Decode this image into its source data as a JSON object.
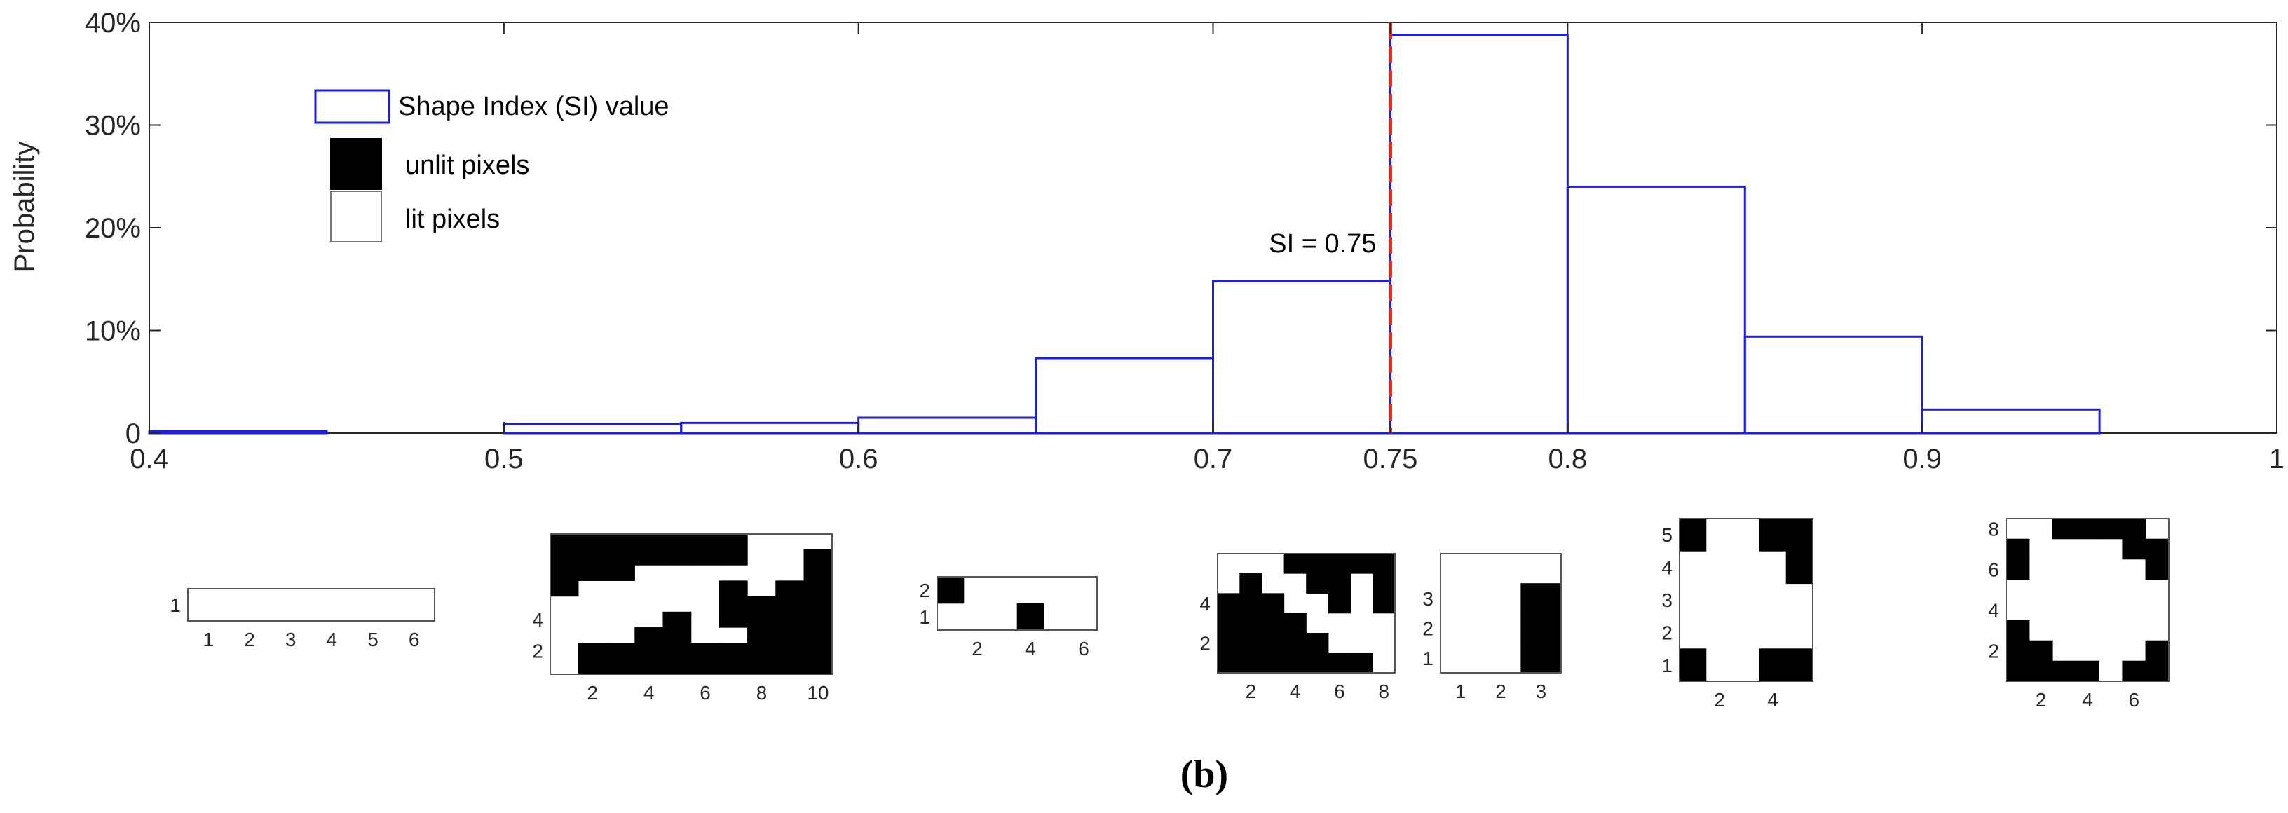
{
  "chart_data": {
    "type": "histogram",
    "ylabel": "Probability",
    "xlabel": "",
    "xlim": [
      0.4,
      1
    ],
    "ylim": [
      0,
      40
    ],
    "x_ticks": [
      "0.4",
      "0.5",
      "0.6",
      "0.7",
      "0.75",
      "0.8",
      "0.9",
      "1"
    ],
    "y_ticks": [
      "0",
      "10%",
      "20%",
      "30%",
      "40%"
    ],
    "bin_edges": [
      0.4,
      0.45,
      0.5,
      0.55,
      0.6,
      0.65,
      0.7,
      0.75,
      0.8,
      0.85,
      0.9,
      0.95,
      1.0
    ],
    "values": [
      0.2,
      0.0,
      0.9,
      1.0,
      1.5,
      7.3,
      14.8,
      38.8,
      24.0,
      9.4,
      2.3,
      0.0
    ],
    "series_name": "Shape Index (SI) value",
    "threshold": {
      "value": 0.75,
      "label": "SI = 0.75",
      "color": "#e8261c"
    },
    "legend": {
      "series": "Shape Index (SI) value",
      "unlit": "unlit pixels",
      "lit": "lit pixels"
    },
    "colors": {
      "bars": "#1f1fd9",
      "unlit": "#000000",
      "lit": "#ffffff"
    }
  },
  "examples": [
    {
      "rows": [
        "000000"
      ],
      "y_ticks": [
        "1"
      ],
      "x_ticks": [
        "1",
        "2",
        "3",
        "4",
        "5",
        "6"
      ]
    },
    {
      "rows": [
        "1111111000",
        "1111111001",
        "1110000001",
        "1000001011",
        "0000001111",
        "0000101111",
        "0001100111",
        "0111111111",
        "0111111111"
      ],
      "y_ticks": [
        "4",
        "2"
      ],
      "x_ticks": [
        "2",
        "4",
        "6",
        "8",
        "10"
      ]
    },
    {
      "rows": [
        "100000",
        "000100"
      ],
      "y_ticks": [
        "2",
        "1"
      ],
      "x_ticks": [
        "2",
        "4",
        "6"
      ]
    },
    {
      "rows": [
        "00011111",
        "01001101",
        "11100101",
        "11110000",
        "11111000",
        "11111110"
      ],
      "y_ticks": [
        "4",
        "2"
      ],
      "x_ticks": [
        "2",
        "4",
        "6",
        "8"
      ]
    },
    {
      "rows": [
        "000",
        "001",
        "001",
        "001"
      ],
      "y_ticks": [
        "3",
        "2",
        "1"
      ],
      "x_ticks": [
        "1",
        "2",
        "3"
      ]
    },
    {
      "rows": [
        "10011",
        "00001",
        "00000",
        "00000",
        "10011"
      ],
      "y_ticks": [
        "5",
        "4",
        "3",
        "2",
        "1"
      ],
      "x_ticks": [
        "2",
        "4"
      ]
    },
    {
      "rows": [
        "0011110",
        "1000011",
        "1000001",
        "0000000",
        "0000000",
        "1000000",
        "1100001",
        "1111011"
      ],
      "y_ticks": [
        "8",
        "6",
        "4",
        "2"
      ],
      "x_ticks": [
        "2",
        "4",
        "6"
      ]
    }
  ],
  "caption": "(b)"
}
